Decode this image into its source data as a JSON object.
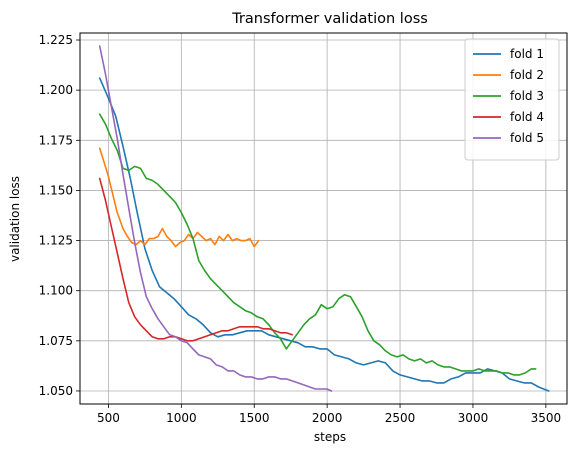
{
  "chart_data": {
    "type": "line",
    "title": "Transformer validation loss",
    "xlabel": "steps",
    "ylabel": "validation loss",
    "xlim": [
      305,
      3645
    ],
    "ylim": [
      1.0435,
      1.2285
    ],
    "xticks": [
      500,
      1000,
      1500,
      2000,
      2500,
      3000,
      3500
    ],
    "yticks": [
      1.05,
      1.075,
      1.1,
      1.125,
      1.15,
      1.175,
      1.2,
      1.225
    ],
    "ytick_labels": [
      "1.050",
      "1.075",
      "1.100",
      "1.125",
      "1.150",
      "1.175",
      "1.200",
      "1.225"
    ],
    "grid": true,
    "legend_position": "top-right",
    "series": [
      {
        "name": "fold 1",
        "color": "#1f77b4",
        "x": [
          440,
          500,
          550,
          600,
          650,
          700,
          750,
          800,
          850,
          900,
          950,
          1000,
          1050,
          1100,
          1150,
          1200,
          1250,
          1300,
          1350,
          1400,
          1450,
          1500,
          1550,
          1600,
          1650,
          1700,
          1750,
          1800,
          1850,
          1900,
          1950,
          2000,
          2050,
          2100,
          2150,
          2200,
          2250,
          2300,
          2350,
          2400,
          2450,
          2500,
          2550,
          2600,
          2650,
          2700,
          2750,
          2800,
          2850,
          2900,
          2950,
          3000,
          3050,
          3100,
          3150,
          3200,
          3250,
          3300,
          3350,
          3400,
          3450,
          3520
        ],
        "y": [
          1.206,
          1.196,
          1.187,
          1.172,
          1.156,
          1.138,
          1.121,
          1.11,
          1.102,
          1.099,
          1.096,
          1.092,
          1.088,
          1.086,
          1.083,
          1.079,
          1.077,
          1.078,
          1.078,
          1.079,
          1.08,
          1.08,
          1.08,
          1.078,
          1.077,
          1.076,
          1.075,
          1.074,
          1.072,
          1.072,
          1.071,
          1.071,
          1.068,
          1.067,
          1.066,
          1.064,
          1.063,
          1.064,
          1.065,
          1.064,
          1.06,
          1.058,
          1.057,
          1.056,
          1.055,
          1.055,
          1.054,
          1.054,
          1.056,
          1.057,
          1.059,
          1.059,
          1.059,
          1.061,
          1.06,
          1.059,
          1.056,
          1.055,
          1.054,
          1.054,
          1.052,
          1.05
        ]
      },
      {
        "name": "fold 2",
        "color": "#ff7f0e",
        "x": [
          440,
          470,
          500,
          530,
          560,
          600,
          630,
          660,
          690,
          720,
          750,
          780,
          810,
          840,
          870,
          900,
          930,
          960,
          990,
          1020,
          1050,
          1080,
          1110,
          1140,
          1170,
          1200,
          1230,
          1260,
          1290,
          1320,
          1350,
          1380,
          1410,
          1440,
          1470,
          1500,
          1530
        ],
        "y": [
          1.171,
          1.164,
          1.157,
          1.148,
          1.139,
          1.131,
          1.127,
          1.124,
          1.123,
          1.125,
          1.123,
          1.126,
          1.126,
          1.127,
          1.131,
          1.127,
          1.125,
          1.122,
          1.124,
          1.125,
          1.128,
          1.126,
          1.129,
          1.127,
          1.125,
          1.126,
          1.123,
          1.127,
          1.125,
          1.128,
          1.125,
          1.126,
          1.125,
          1.125,
          1.126,
          1.122,
          1.125
        ]
      },
      {
        "name": "fold 3",
        "color": "#2ca02c",
        "x": [
          440,
          480,
          520,
          560,
          600,
          640,
          680,
          720,
          760,
          800,
          840,
          880,
          920,
          960,
          1000,
          1040,
          1080,
          1120,
          1160,
          1200,
          1240,
          1280,
          1320,
          1360,
          1400,
          1440,
          1480,
          1520,
          1560,
          1600,
          1640,
          1680,
          1720,
          1760,
          1800,
          1840,
          1880,
          1920,
          1960,
          2000,
          2040,
          2080,
          2120,
          2160,
          2200,
          2240,
          2280,
          2320,
          2360,
          2400,
          2440,
          2480,
          2520,
          2560,
          2600,
          2640,
          2680,
          2720,
          2760,
          2800,
          2840,
          2880,
          2920,
          2960,
          3000,
          3040,
          3080,
          3120,
          3160,
          3200,
          3240,
          3280,
          3320,
          3360,
          3400,
          3430
        ],
        "y": [
          1.188,
          1.183,
          1.176,
          1.17,
          1.161,
          1.16,
          1.162,
          1.161,
          1.156,
          1.155,
          1.153,
          1.15,
          1.147,
          1.144,
          1.139,
          1.133,
          1.126,
          1.115,
          1.11,
          1.106,
          1.103,
          1.1,
          1.097,
          1.094,
          1.092,
          1.09,
          1.089,
          1.087,
          1.086,
          1.083,
          1.079,
          1.076,
          1.071,
          1.075,
          1.079,
          1.083,
          1.086,
          1.088,
          1.093,
          1.091,
          1.092,
          1.096,
          1.098,
          1.097,
          1.092,
          1.087,
          1.08,
          1.075,
          1.073,
          1.07,
          1.068,
          1.067,
          1.068,
          1.066,
          1.065,
          1.066,
          1.064,
          1.065,
          1.063,
          1.062,
          1.062,
          1.061,
          1.06,
          1.06,
          1.06,
          1.061,
          1.06,
          1.06,
          1.06,
          1.059,
          1.059,
          1.058,
          1.058,
          1.059,
          1.061,
          1.061
        ]
      },
      {
        "name": "fold 4",
        "color": "#d62728",
        "x": [
          440,
          480,
          520,
          560,
          600,
          640,
          680,
          720,
          760,
          800,
          840,
          880,
          920,
          960,
          1000,
          1040,
          1080,
          1120,
          1160,
          1200,
          1240,
          1280,
          1320,
          1360,
          1400,
          1440,
          1480,
          1520,
          1560,
          1600,
          1640,
          1680,
          1720,
          1760
        ],
        "y": [
          1.156,
          1.145,
          1.132,
          1.119,
          1.106,
          1.094,
          1.087,
          1.083,
          1.08,
          1.077,
          1.076,
          1.076,
          1.077,
          1.077,
          1.076,
          1.075,
          1.075,
          1.076,
          1.077,
          1.078,
          1.079,
          1.08,
          1.08,
          1.081,
          1.082,
          1.082,
          1.082,
          1.082,
          1.081,
          1.081,
          1.08,
          1.079,
          1.079,
          1.078
        ]
      },
      {
        "name": "fold 5",
        "color": "#9467bd",
        "x": [
          440,
          480,
          520,
          560,
          600,
          640,
          680,
          720,
          760,
          800,
          840,
          880,
          920,
          960,
          1000,
          1040,
          1080,
          1120,
          1160,
          1200,
          1240,
          1280,
          1320,
          1360,
          1400,
          1440,
          1480,
          1520,
          1560,
          1600,
          1640,
          1680,
          1720,
          1760,
          1800,
          1840,
          1880,
          1920,
          1960,
          2000,
          2030
        ],
        "y": [
          1.222,
          1.208,
          1.192,
          1.176,
          1.158,
          1.141,
          1.124,
          1.109,
          1.097,
          1.091,
          1.086,
          1.082,
          1.078,
          1.077,
          1.075,
          1.074,
          1.071,
          1.068,
          1.067,
          1.066,
          1.063,
          1.062,
          1.06,
          1.06,
          1.058,
          1.057,
          1.057,
          1.056,
          1.056,
          1.057,
          1.057,
          1.056,
          1.056,
          1.055,
          1.054,
          1.053,
          1.052,
          1.051,
          1.051,
          1.051,
          1.05
        ]
      }
    ]
  }
}
